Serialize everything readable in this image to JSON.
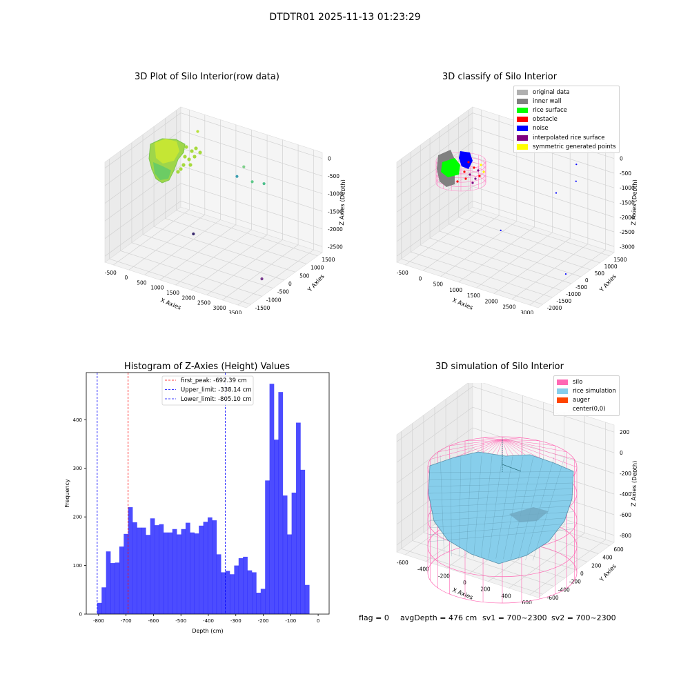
{
  "suptitle": "DTDTR01 2025-11-13 01:23:29",
  "chart_data": [
    {
      "type": "scatter",
      "title": "3D Plot of Silo Interior(row data)",
      "xlabel": "X Axies",
      "ylabel": "Y Axies",
      "zlabel": "Z Axies (Depth)",
      "x_ticks": [
        "-500",
        "0",
        "500",
        "1000",
        "1500",
        "2000",
        "2500",
        "3000",
        "3500"
      ],
      "y_ticks": [
        "-1500",
        "-1000",
        "-500",
        "0",
        "500",
        "1000",
        "1500"
      ],
      "z_ticks": [
        "0",
        "-500",
        "-1000",
        "-1500",
        "-2000",
        "-2500"
      ],
      "xlim": [
        -600,
        3600
      ],
      "ylim": [
        -1700,
        1700
      ],
      "zlim": [
        -2800,
        100
      ],
      "points": [
        {
          "x": 100,
          "y": 1400,
          "z": -250,
          "color": "#b7e13a"
        },
        {
          "x": 2000,
          "y": 600,
          "z": -300,
          "color": "#7ed08a"
        },
        {
          "x": 2450,
          "y": 300,
          "z": -450,
          "color": "#5fc98a"
        },
        {
          "x": 2600,
          "y": 600,
          "z": -600,
          "color": "#4dbf8c"
        },
        {
          "x": 1400,
          "y": 1200,
          "z": -1050,
          "color": "#3b9eb0"
        },
        {
          "x": 3200,
          "y": -400,
          "z": -2700,
          "color": "#7a3d8f"
        },
        {
          "x": 1300,
          "y": -600,
          "z": -1900,
          "color": "#3a2a6e"
        }
      ]
    },
    {
      "type": "scatter",
      "title": "3D classify of Silo Interior",
      "xlabel": "X Axies",
      "ylabel": "Y Axies",
      "zlabel": "Z Axies (Depth)",
      "x_ticks": [
        "-500",
        "0",
        "500",
        "1000",
        "1500",
        "2000",
        "2500",
        "3000"
      ],
      "y_ticks": [
        "-2000",
        "-1500",
        "-1000",
        "-500",
        "0",
        "500",
        "1000",
        "1500"
      ],
      "z_ticks": [
        "0",
        "-500",
        "-1000",
        "-1500",
        "-2000",
        "-2500",
        "-3000"
      ],
      "xlim": [
        -600,
        3200
      ],
      "ylim": [
        -2100,
        1800
      ],
      "zlim": [
        -3200,
        200
      ],
      "legend": [
        {
          "label": "original data",
          "color": "#b0b0b0"
        },
        {
          "label": "inner wall",
          "color": "#808080"
        },
        {
          "label": "rice surface",
          "color": "#00ff00"
        },
        {
          "label": "obstacle",
          "color": "#ff0000"
        },
        {
          "label": "noise",
          "color": "#0000ff"
        },
        {
          "label": "interpolated rice surface",
          "color": "#800080"
        },
        {
          "label": "symmetric generated points",
          "color": "#ffff00"
        }
      ],
      "points": [
        {
          "x": 2500,
          "y": 1200,
          "z": -200,
          "color": "#0000ff"
        },
        {
          "x": 2700,
          "y": 800,
          "z": -500,
          "color": "#0000ff"
        },
        {
          "x": 1800,
          "y": 1500,
          "z": -1600,
          "color": "#0000ff"
        },
        {
          "x": 1200,
          "y": -200,
          "z": -2300,
          "color": "#0000ff"
        },
        {
          "x": 3000,
          "y": -300,
          "z": -3000,
          "color": "#0000ff"
        }
      ]
    },
    {
      "type": "bar",
      "title": "Histogram of Z-Axies (Height) Values",
      "xlabel": "Depth (cm)",
      "ylabel": "Frequency",
      "xlim": [
        -845,
        40
      ],
      "ylim": [
        0,
        497
      ],
      "x_ticks": [
        -800,
        -700,
        -600,
        -500,
        -400,
        -300,
        -200,
        -100,
        0
      ],
      "y_ticks": [
        0,
        100,
        200,
        300,
        400
      ],
      "bin_start": -805.1,
      "bin_width": 16.1,
      "values": [
        23,
        55,
        129,
        105,
        106,
        139,
        165,
        220,
        189,
        178,
        178,
        163,
        197,
        183,
        185,
        168,
        168,
        175,
        164,
        175,
        188,
        168,
        166,
        182,
        190,
        199,
        193,
        123,
        86,
        89,
        82,
        100,
        115,
        118,
        90,
        86,
        44,
        52,
        275,
        474,
        359,
        457,
        244,
        164,
        250,
        394,
        297,
        60
      ],
      "bar_color": "#0000ff",
      "bar_alpha": 0.7,
      "vlines": [
        {
          "label": "first_peak: -692.39 cm",
          "x": -692.39,
          "color": "#ff0000"
        },
        {
          "label": "Upper_limit: -338.14 cm",
          "x": -338.14,
          "color": "#0000ff"
        },
        {
          "label": "Lower_limit: -805.10 cm",
          "x": -805.1,
          "color": "#0000ff"
        }
      ]
    },
    {
      "type": "surface",
      "title": "3D simulation of Silo Interior",
      "xlabel": "X Axies",
      "ylabel": "Y Axies",
      "zlabel": "Z Axies (Depth)",
      "x_ticks": [
        "-600",
        "-400",
        "-200",
        "0",
        "200",
        "400",
        "600"
      ],
      "y_ticks": [
        "-600",
        "-400",
        "-200",
        "0",
        "200",
        "400",
        "600"
      ],
      "z_ticks": [
        "200",
        "0",
        "-200",
        "-400",
        "-600",
        "-800"
      ],
      "xlim": [
        -700,
        700
      ],
      "ylim": [
        -700,
        700
      ],
      "zlim": [
        -950,
        300
      ],
      "legend": [
        {
          "label": "silo",
          "color": "#ff69b4"
        },
        {
          "label": "rice simulation",
          "color": "#87ceeb"
        },
        {
          "label": "auger",
          "color": "#ff4500"
        },
        {
          "label": "center(0,0)",
          "color": "#ffffff"
        }
      ]
    }
  ],
  "footer": {
    "flag": "flag = 0",
    "avg": "avgDepth = 476 cm",
    "sv1": "sv1 = 700~2300",
    "sv2": "sv2 = 700~2300"
  }
}
